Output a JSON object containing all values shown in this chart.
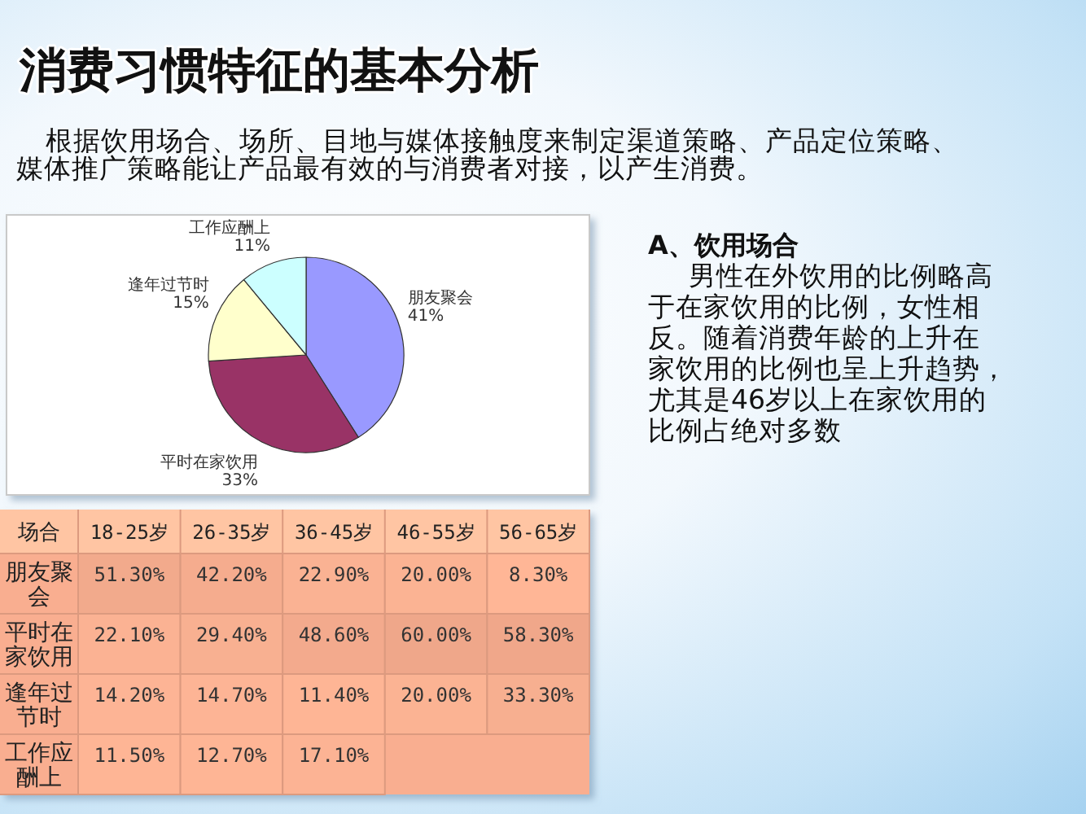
{
  "chart_data": [
    {
      "type": "pie",
      "title": "消费习惯特征的基本分析",
      "subtitle": "根据饮用场合、场所、目地与媒体接触度来制定渠道策略、产品定位策略、媒体推广策略能让产品最有效的与消费者对接，以产生消费。",
      "categories": [
        "朋友聚会",
        "平时在家饮用",
        "逢年过节时",
        "工作应酬上"
      ],
      "values": [
        41,
        33,
        15,
        11
      ],
      "colors": [
        "#9999ff",
        "#993366",
        "#ffffcc",
        "#ccffff"
      ],
      "value_labels": [
        "41%",
        "33%",
        "15%",
        "11%"
      ],
      "annotations": [
        "A、饮用场合",
        "男性在外饮用的比例略高于在家饮用的比例，女性相反。随着消费年龄的上升在家饮用的比例也呈上升趋势，尤其是46岁以上在家饮用的比例占绝对多数"
      ]
    },
    {
      "type": "heatmap",
      "ylabel": "场合",
      "categories": [
        "18-25岁",
        "26-35岁",
        "36-45岁",
        "46-55岁",
        "56-65岁"
      ],
      "y_categories": [
        "朋友聚会",
        "平时在家饮用",
        "逢年过节时",
        "工作应酬上"
      ],
      "cells": [
        [
          51.3,
          42.2,
          22.9,
          20.0,
          8.3
        ],
        [
          22.1,
          29.4,
          48.6,
          60.0,
          58.3
        ],
        [
          14.2,
          14.7,
          11.4,
          20.0,
          33.3
        ],
        [
          11.5,
          12.7,
          17.1,
          null,
          null
        ]
      ],
      "cell_labels": [
        [
          "51.30%",
          "42.20%",
          "22.90%",
          "20.00%",
          "8.30%"
        ],
        [
          "22.10%",
          "29.40%",
          "48.60%",
          "60.00%",
          "58.30%"
        ],
        [
          "14.20%",
          "14.70%",
          "11.40%",
          "20.00%",
          "33.30%"
        ],
        [
          "11.50%",
          "12.70%",
          "17.10%",
          null,
          null
        ]
      ],
      "color": "#f9ae90"
    }
  ]
}
